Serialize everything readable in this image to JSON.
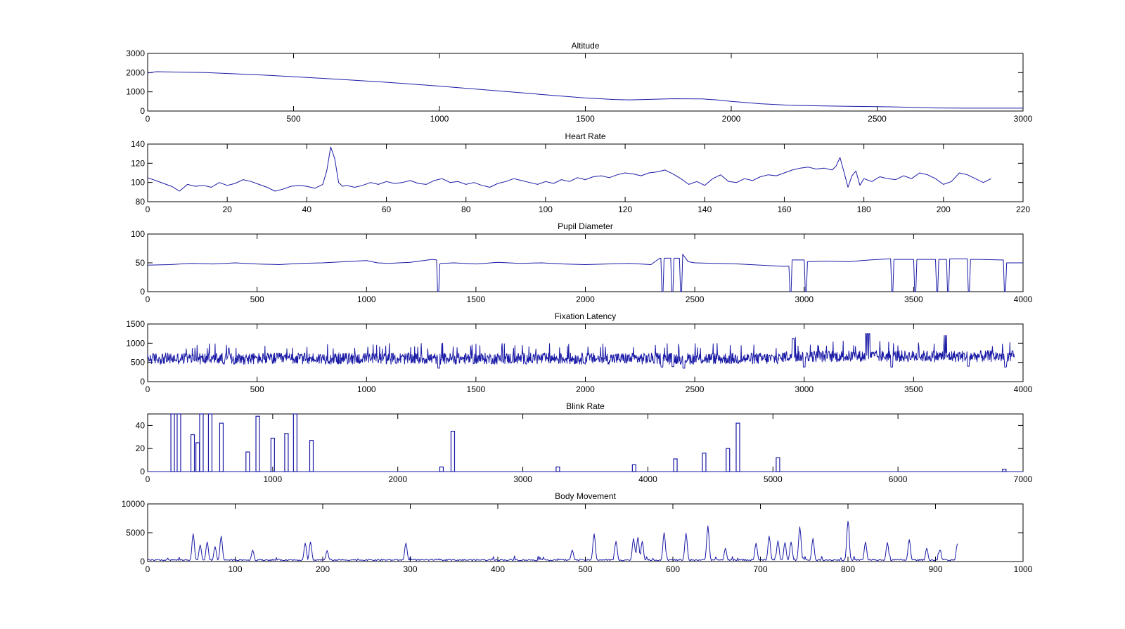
{
  "figure": {
    "line_color": "#1a1aa6",
    "background": "#ffffff"
  },
  "chart_data": [
    {
      "type": "line",
      "title": "Altitude",
      "xlim": [
        0,
        3000
      ],
      "ylim": [
        0,
        3000
      ],
      "xticks": [
        0,
        500,
        1000,
        1500,
        2000,
        2500,
        3000
      ],
      "yticks": [
        0,
        1000,
        2000,
        3000
      ],
      "series": [
        {
          "x": [
            0,
            30,
            200,
            400,
            600,
            800,
            1000,
            1200,
            1400,
            1500,
            1600,
            1650,
            1700,
            1800,
            1900,
            1950,
            2000,
            2100,
            2200,
            2300,
            2400,
            2500,
            2600,
            2700,
            2800,
            2900,
            3000
          ],
          "y": [
            1980,
            2050,
            2000,
            1870,
            1700,
            1520,
            1300,
            1050,
            800,
            680,
            600,
            580,
            600,
            640,
            630,
            580,
            500,
            380,
            300,
            270,
            250,
            230,
            200,
            160,
            150,
            150,
            150
          ]
        }
      ]
    },
    {
      "type": "line",
      "title": "Heart Rate",
      "xlim": [
        0,
        220
      ],
      "ylim": [
        80,
        140
      ],
      "xticks": [
        0,
        20,
        40,
        60,
        80,
        100,
        120,
        140,
        160,
        180,
        200,
        220
      ],
      "yticks": [
        80,
        100,
        120,
        140
      ],
      "series": [
        {
          "x": [
            0,
            2,
            4,
            6,
            8,
            10,
            12,
            14,
            16,
            18,
            20,
            22,
            24,
            26,
            28,
            30,
            32,
            34,
            36,
            38,
            40,
            42,
            44,
            45,
            46,
            47,
            48,
            49,
            50,
            52,
            54,
            56,
            58,
            60,
            62,
            64,
            66,
            68,
            70,
            72,
            74,
            76,
            78,
            80,
            82,
            84,
            86,
            88,
            90,
            92,
            94,
            96,
            98,
            100,
            102,
            104,
            106,
            108,
            110,
            112,
            114,
            116,
            118,
            120,
            122,
            124,
            126,
            128,
            130,
            132,
            134,
            136,
            138,
            140,
            142,
            144,
            146,
            148,
            150,
            152,
            154,
            156,
            158,
            160,
            162,
            164,
            166,
            168,
            170,
            172,
            173,
            174,
            175,
            176,
            177,
            178,
            179,
            180,
            182,
            184,
            186,
            188,
            190,
            192,
            194,
            196,
            198,
            200,
            202,
            204,
            206,
            208,
            210,
            212
          ],
          "y": [
            105,
            102,
            99,
            96,
            91,
            98,
            96,
            97,
            95,
            100,
            97,
            99,
            103,
            101,
            98,
            95,
            91,
            93,
            96,
            97,
            96,
            94,
            98,
            112,
            137,
            125,
            100,
            96,
            97,
            95,
            97,
            100,
            98,
            101,
            99,
            100,
            102,
            99,
            98,
            102,
            104,
            100,
            101,
            98,
            100,
            97,
            95,
            99,
            101,
            104,
            102,
            100,
            98,
            101,
            99,
            103,
            101,
            105,
            103,
            106,
            107,
            105,
            108,
            110,
            109,
            107,
            110,
            111,
            113,
            109,
            104,
            98,
            101,
            97,
            104,
            108,
            101,
            100,
            104,
            102,
            106,
            108,
            107,
            110,
            113,
            115,
            116,
            114,
            115,
            113,
            117,
            126,
            111,
            95,
            107,
            112,
            97,
            104,
            101,
            106,
            104,
            103,
            107,
            104,
            110,
            108,
            104,
            98,
            101,
            110,
            108,
            104,
            100,
            104
          ]
        }
      ]
    },
    {
      "type": "line",
      "title": "Pupil Diameter",
      "xlim": [
        0,
        4000
      ],
      "ylim": [
        0,
        100
      ],
      "xticks": [
        0,
        500,
        1000,
        1500,
        2000,
        2500,
        3000,
        3500,
        4000
      ],
      "yticks": [
        0,
        50,
        100
      ],
      "series": [
        {
          "x": [
            0,
            100,
            200,
            300,
            400,
            500,
            600,
            700,
            800,
            900,
            1000,
            1050,
            1100,
            1200,
            1300,
            1320,
            1325,
            1330,
            1335,
            1340,
            1400,
            1500,
            1600,
            1700,
            1800,
            1900,
            2000,
            2100,
            2200,
            2300,
            2340,
            2345,
            2350,
            2355,
            2360,
            2390,
            2395,
            2400,
            2405,
            2410,
            2430,
            2435,
            2440,
            2445,
            2450,
            2470,
            2500,
            2600,
            2700,
            2800,
            2900,
            2930,
            2935,
            2940,
            2945,
            2950,
            3000,
            3005,
            3010,
            3015,
            3020,
            3100,
            3200,
            3300,
            3390,
            3395,
            3400,
            3405,
            3410,
            3500,
            3505,
            3510,
            3515,
            3520,
            3600,
            3605,
            3610,
            3615,
            3620,
            3650,
            3655,
            3660,
            3665,
            3670,
            3700,
            3745,
            3750,
            3755,
            3760,
            3800,
            3900,
            3910,
            3915,
            3920,
            3925,
            3950,
            4000
          ],
          "y": [
            46,
            47,
            49,
            48,
            50,
            48,
            47,
            49,
            50,
            52,
            54,
            50,
            49,
            51,
            56,
            55,
            0,
            0,
            48,
            49,
            50,
            48,
            51,
            49,
            50,
            48,
            47,
            48,
            49,
            47,
            58,
            58,
            0,
            0,
            58,
            58,
            0,
            0,
            58,
            58,
            58,
            0,
            0,
            65,
            62,
            52,
            50,
            49,
            48,
            46,
            44,
            44,
            0,
            0,
            55,
            55,
            55,
            0,
            0,
            52,
            52,
            53,
            52,
            55,
            57,
            57,
            0,
            0,
            56,
            56,
            0,
            0,
            56,
            56,
            56,
            0,
            0,
            56,
            56,
            56,
            0,
            0,
            57,
            57,
            57,
            57,
            0,
            0,
            56,
            56,
            55,
            55,
            0,
            0,
            50,
            50,
            50
          ]
        }
      ]
    },
    {
      "type": "line",
      "title": "Fixation Latency",
      "xlim": [
        0,
        4000
      ],
      "ylim": [
        0,
        1500
      ],
      "xticks": [
        0,
        500,
        1000,
        1500,
        2000,
        2500,
        3000,
        3500,
        4000
      ],
      "yticks": [
        0,
        500,
        1000,
        1500
      ],
      "series": [
        {
          "x": [
            0,
            1000,
            1330,
            1340,
            2000,
            2350,
            2360,
            2400,
            2450,
            2460,
            2950,
            2960,
            3000,
            3010,
            3400,
            3410,
            3750,
            3760,
            3920,
            3930,
            3960
          ],
          "y": [
            600,
            610,
            350,
            620,
            600,
            380,
            600,
            390,
            350,
            620,
            1120,
            700,
            380,
            650,
            380,
            680,
            400,
            650,
            380,
            620,
            620
          ]
        }
      ]
    },
    {
      "type": "bar",
      "title": "Blink Rate",
      "xlim": [
        0,
        7000
      ],
      "ylim": [
        0,
        50
      ],
      "xticks": [
        0,
        1000,
        2000,
        3000,
        4000,
        5000,
        6000,
        7000
      ],
      "yticks": [
        0,
        20,
        40
      ],
      "series": [
        {
          "x": [
            200,
            250,
            360,
            400,
            430,
            500,
            590,
            800,
            880,
            1000,
            1110,
            1180,
            1310,
            2350,
            2440,
            3280,
            3890,
            4220,
            4450,
            4640,
            4720,
            5040,
            6850
          ],
          "y": [
            50,
            50,
            32,
            25,
            50,
            50,
            42,
            17,
            48,
            29,
            33,
            50,
            27,
            4,
            35,
            4,
            6,
            11,
            16,
            20,
            42,
            12,
            2
          ]
        }
      ]
    },
    {
      "type": "line",
      "title": "Body Movement",
      "xlim": [
        0,
        1000
      ],
      "ylim": [
        0,
        10000
      ],
      "xticks": [
        0,
        100,
        200,
        300,
        400,
        500,
        600,
        700,
        800,
        900,
        1000
      ],
      "yticks": [
        0,
        5000,
        10000
      ],
      "series": [
        {
          "x": [
            52,
            60,
            68,
            77,
            84,
            120,
            180,
            186,
            205,
            295,
            485,
            510,
            535,
            555,
            560,
            565,
            590,
            615,
            640,
            660,
            695,
            710,
            720,
            728,
            735,
            745,
            760,
            800,
            820,
            845,
            870,
            890,
            905,
            925
          ],
          "y": [
            4800,
            2900,
            3400,
            2600,
            4400,
            2000,
            3200,
            3400,
            1900,
            3200,
            2000,
            4800,
            3500,
            4000,
            4200,
            3500,
            5000,
            4900,
            6200,
            2300,
            3200,
            4400,
            3600,
            3300,
            3400,
            6000,
            3900,
            7000,
            3400,
            3300,
            3800,
            2300,
            2000,
            3100
          ]
        }
      ]
    }
  ]
}
